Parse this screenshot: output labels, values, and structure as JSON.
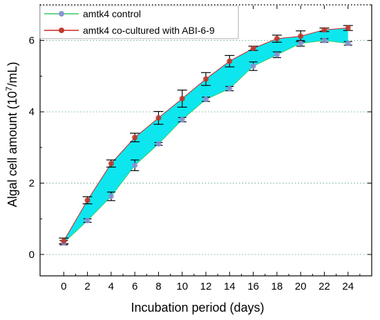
{
  "chart_data": {
    "type": "line",
    "xlabel": "Incubation period (days)",
    "ylabel_prefix": "Algal cell amount (10",
    "ylabel_sup": "7",
    "ylabel_suffix": "/mL)",
    "x": [
      0,
      2,
      4,
      6,
      8,
      10,
      12,
      14,
      16,
      18,
      20,
      22,
      24
    ],
    "xlim": [
      -2,
      26
    ],
    "ylim": [
      -0.6,
      7.0
    ],
    "xticks": [
      "0",
      "2",
      "4",
      "6",
      "8",
      "10",
      "12",
      "14",
      "16",
      "18",
      "20",
      "22",
      "24"
    ],
    "yticks": [
      "0",
      "2",
      "4",
      "6"
    ],
    "grid": "horizontal dotted",
    "legend_position": "top-left",
    "series": [
      {
        "name": "amtk4 control",
        "values": [
          0.33,
          0.95,
          1.63,
          2.5,
          3.1,
          3.78,
          4.35,
          4.65,
          5.28,
          5.6,
          5.92,
          6.0,
          5.92
        ],
        "errors": [
          0.06,
          0.05,
          0.12,
          0.15,
          0.04,
          0.06,
          0.06,
          0.06,
          0.12,
          0.08,
          0.08,
          0.05,
          0.05
        ],
        "line_color": "#33cc66",
        "marker_color": "#8a94d4"
      },
      {
        "name": "amtk4 co-cultured with ABI-6-9",
        "values": [
          0.38,
          1.52,
          2.55,
          3.28,
          3.83,
          4.37,
          4.92,
          5.42,
          5.78,
          6.05,
          6.12,
          6.3,
          6.35
        ],
        "errors": [
          0.08,
          0.1,
          0.1,
          0.12,
          0.18,
          0.24,
          0.18,
          0.16,
          0.06,
          0.1,
          0.15,
          0.05,
          0.07
        ],
        "line_color": "#cc2222",
        "marker_color": "#c0392b"
      }
    ],
    "band_color": "#00e5ee"
  }
}
